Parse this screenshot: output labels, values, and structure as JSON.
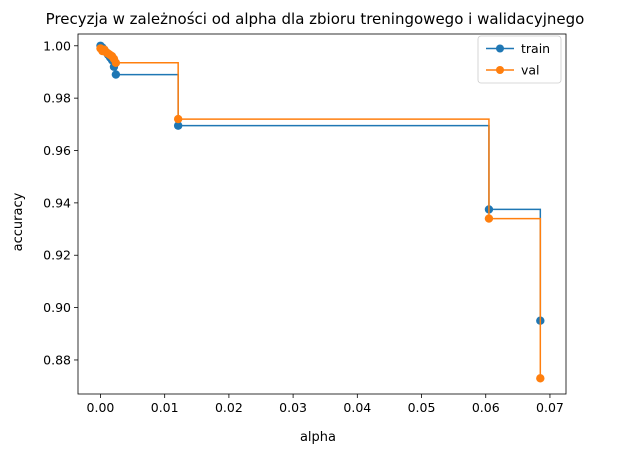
{
  "chart_data": {
    "type": "line",
    "title": "Precyzja w zależności od alpha dla zbioru treningowego i walidacyjnego",
    "xlabel": "alpha",
    "ylabel": "accuracy",
    "xlim": [
      -0.0035,
      0.0725
    ],
    "ylim": [
      0.867,
      1.0045
    ],
    "xticks": [
      0.0,
      0.01,
      0.02,
      0.03,
      0.04,
      0.05,
      0.06,
      0.07
    ],
    "xtick_labels": [
      "0.00",
      "0.01",
      "0.02",
      "0.03",
      "0.04",
      "0.05",
      "0.06",
      "0.07"
    ],
    "yticks": [
      0.88,
      0.9,
      0.92,
      0.94,
      0.96,
      0.98,
      1.0
    ],
    "ytick_labels": [
      "0.88",
      "0.90",
      "0.92",
      "0.94",
      "0.96",
      "0.98",
      "1.00"
    ],
    "grid": false,
    "legend_position": "top-right",
    "step": "post",
    "series": [
      {
        "name": "train",
        "color": "#1f77b4",
        "x": [
          0.0,
          0.0003,
          0.0006,
          0.0009,
          0.0012,
          0.0015,
          0.0018,
          0.0021,
          0.0024,
          0.0121,
          0.0605,
          0.0685
        ],
        "y": [
          1.0,
          0.9993,
          0.9985,
          0.9975,
          0.9965,
          0.9955,
          0.9945,
          0.992,
          0.989,
          0.9695,
          0.9375,
          0.895
        ]
      },
      {
        "name": "val",
        "color": "#ff7f0e",
        "x": [
          0.0,
          0.0003,
          0.0006,
          0.0009,
          0.0012,
          0.0015,
          0.0018,
          0.0021,
          0.0024,
          0.0121,
          0.0605,
          0.0685
        ],
        "y": [
          0.999,
          0.998,
          0.9985,
          0.9975,
          0.997,
          0.9965,
          0.996,
          0.995,
          0.9935,
          0.972,
          0.934,
          0.873
        ]
      }
    ]
  }
}
